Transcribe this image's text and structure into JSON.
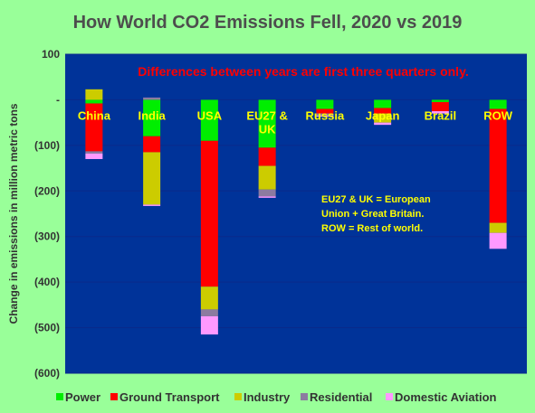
{
  "chart_data": {
    "type": "bar",
    "stacked": true,
    "title": "How World CO2 Emissions Fell, 2020 vs 2019",
    "subtitle": "Differences between years are first three quarters only.",
    "ylabel": "Change in emissions in million metric tons",
    "xlabel": "",
    "ylim": [
      -600,
      100
    ],
    "y_ticks": [
      100,
      0,
      -100,
      -200,
      -300,
      -400,
      -500,
      -600
    ],
    "y_tick_labels": [
      "100",
      "-",
      "(100)",
      "(200)",
      "(300)",
      "(400)",
      "(500)",
      "(600)"
    ],
    "categories": [
      "China",
      "India",
      "USA",
      "EU27 &\nUK",
      "Russia",
      "Japan",
      "Brazil",
      "ROW"
    ],
    "series": [
      {
        "name": "Power",
        "color": "#00ee00",
        "values": [
          -8,
          -80,
          -90,
          -105,
          -20,
          -18,
          -5,
          -20
        ]
      },
      {
        "name": "Ground Transport",
        "color": "#ff0000",
        "values": [
          -105,
          -35,
          -320,
          -40,
          -10,
          -12,
          -20,
          -250
        ]
      },
      {
        "name": "Industry",
        "color": "#cccc00",
        "values": [
          23,
          -115,
          -50,
          -52,
          0,
          -20,
          0,
          -22
        ]
      },
      {
        "name": "Residential",
        "color": "#8c7ba0",
        "values": [
          -5,
          5,
          -15,
          -15,
          -5,
          0,
          0,
          0
        ]
      },
      {
        "name": "Domestic Aviation",
        "color": "#ff99ff",
        "values": [
          -12,
          -3,
          -40,
          -3,
          -2,
          -5,
          -5,
          -35
        ]
      }
    ],
    "annotation": "EU27 & UK = European Union + Great Britain. ROW = Rest of world.",
    "annotation_lines": [
      "EU27 & UK = European",
      "Union + Great Britain.",
      "ROW = Rest of world."
    ],
    "plot_background": "#003399",
    "grid": true,
    "legend_position": "bottom"
  }
}
